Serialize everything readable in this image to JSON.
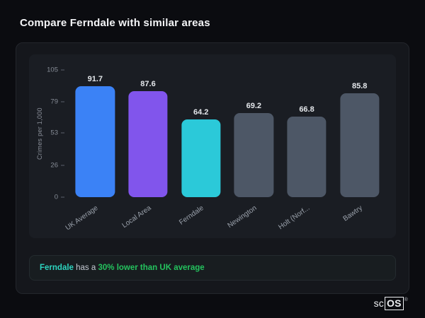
{
  "page": {
    "title": "Compare Ferndale with similar areas"
  },
  "chart_data": {
    "type": "bar",
    "title": "",
    "categories": [
      "UK Average",
      "Local Area",
      "Ferndale",
      "Newington",
      "Holt (Norf...",
      "Bawtry"
    ],
    "values": [
      91.7,
      87.6,
      64.2,
      69.2,
      66.8,
      85.8
    ],
    "value_labels": [
      "91.7",
      "87.6",
      "64.2",
      "69.2",
      "66.8",
      "85.8"
    ],
    "bar_colors": [
      "#3b82f6",
      "#8155ec",
      "#2bc9d9",
      "#4d5766",
      "#4d5766",
      "#4d5766"
    ],
    "xlabel": "",
    "ylabel": "Crimes per 1,000",
    "yticks": [
      0,
      26,
      53,
      79,
      105
    ],
    "ylim": [
      0,
      105
    ],
    "grid": false,
    "legend": "none"
  },
  "note": {
    "area": "Ferndale",
    "connector": "has a",
    "stat": "30% lower than UK average"
  },
  "colors": {
    "highlight_cyan": "#2dd4bf",
    "stat_green": "#22c55e",
    "card_bg": "#15171c",
    "page_bg": "#0b0c10"
  },
  "logo": {
    "prefix": "sc",
    "boxed": "OS",
    "registered": "®"
  }
}
